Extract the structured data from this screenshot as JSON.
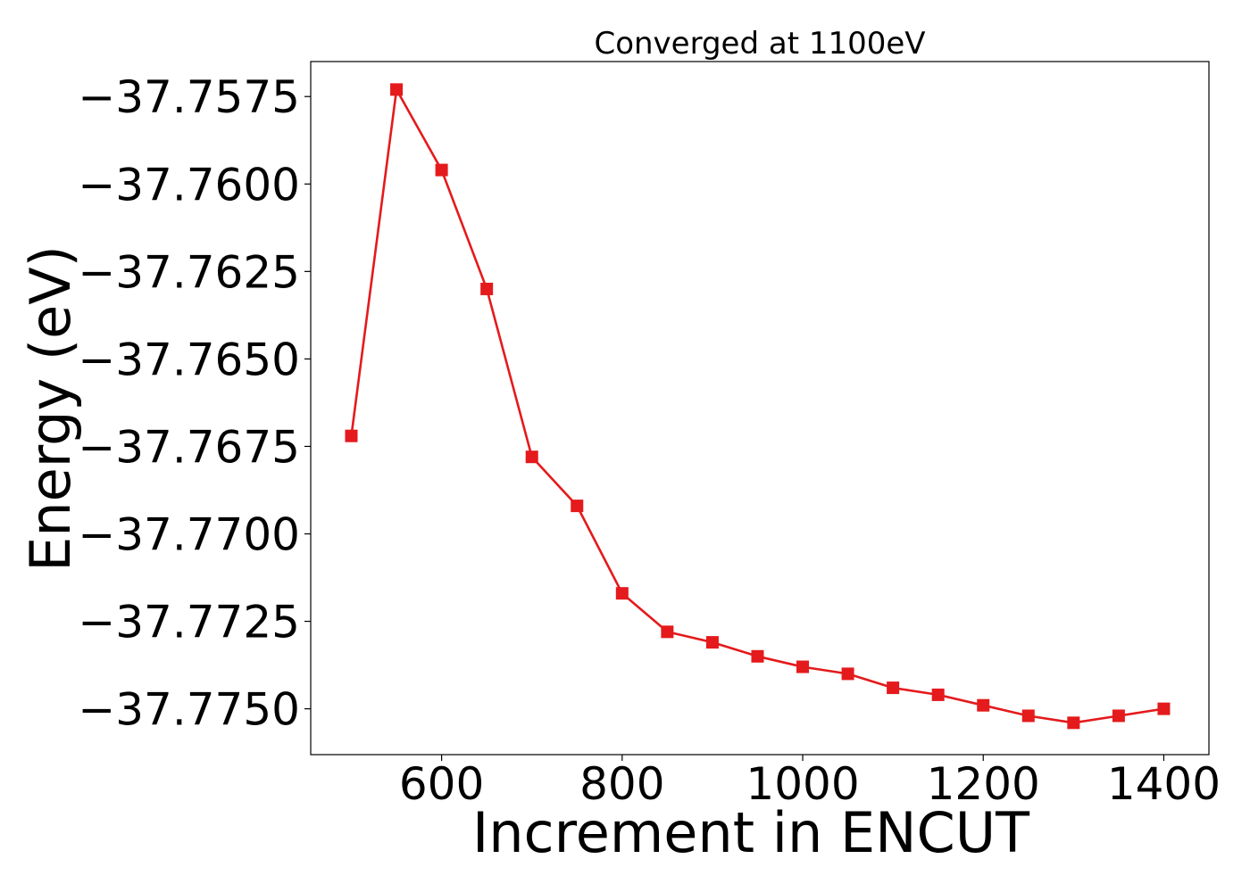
{
  "chart_data": {
    "type": "line",
    "title": "Converged at 1100eV",
    "xlabel": "Increment in ENCUT",
    "ylabel": "Energy (eV)",
    "xlim": [
      455,
      1450
    ],
    "ylim": [
      -37.77631,
      -37.7565
    ],
    "x_ticks": [
      600,
      800,
      1000,
      1200,
      1400
    ],
    "x_tick_labels": [
      "600",
      "800",
      "1000",
      "1200",
      "1400"
    ],
    "y_ticks": [
      -37.7575,
      -37.76,
      -37.7625,
      -37.765,
      -37.7675,
      -37.77,
      -37.7725,
      -37.775
    ],
    "y_tick_labels": [
      "−37.7575",
      "−37.7600",
      "−37.7625",
      "−37.7650",
      "−37.7675",
      "−37.7700",
      "−37.7725",
      "−37.7750"
    ],
    "grid": false,
    "marker": "square",
    "color": "#e41a1c",
    "series": [
      {
        "x": [
          500,
          550,
          600,
          650,
          700,
          750,
          800,
          850,
          900,
          950,
          1000,
          1050,
          1100,
          1150,
          1200,
          1250,
          1300,
          1350,
          1400
        ],
        "values": [
          -37.7672,
          -37.7573,
          -37.7596,
          -37.763,
          -37.7678,
          -37.7692,
          -37.7717,
          -37.7728,
          -37.7731,
          -37.7735,
          -37.7738,
          -37.774,
          -37.7744,
          -37.7746,
          -37.7749,
          -37.7752,
          -37.7754,
          -37.7752,
          -37.775
        ]
      }
    ]
  }
}
